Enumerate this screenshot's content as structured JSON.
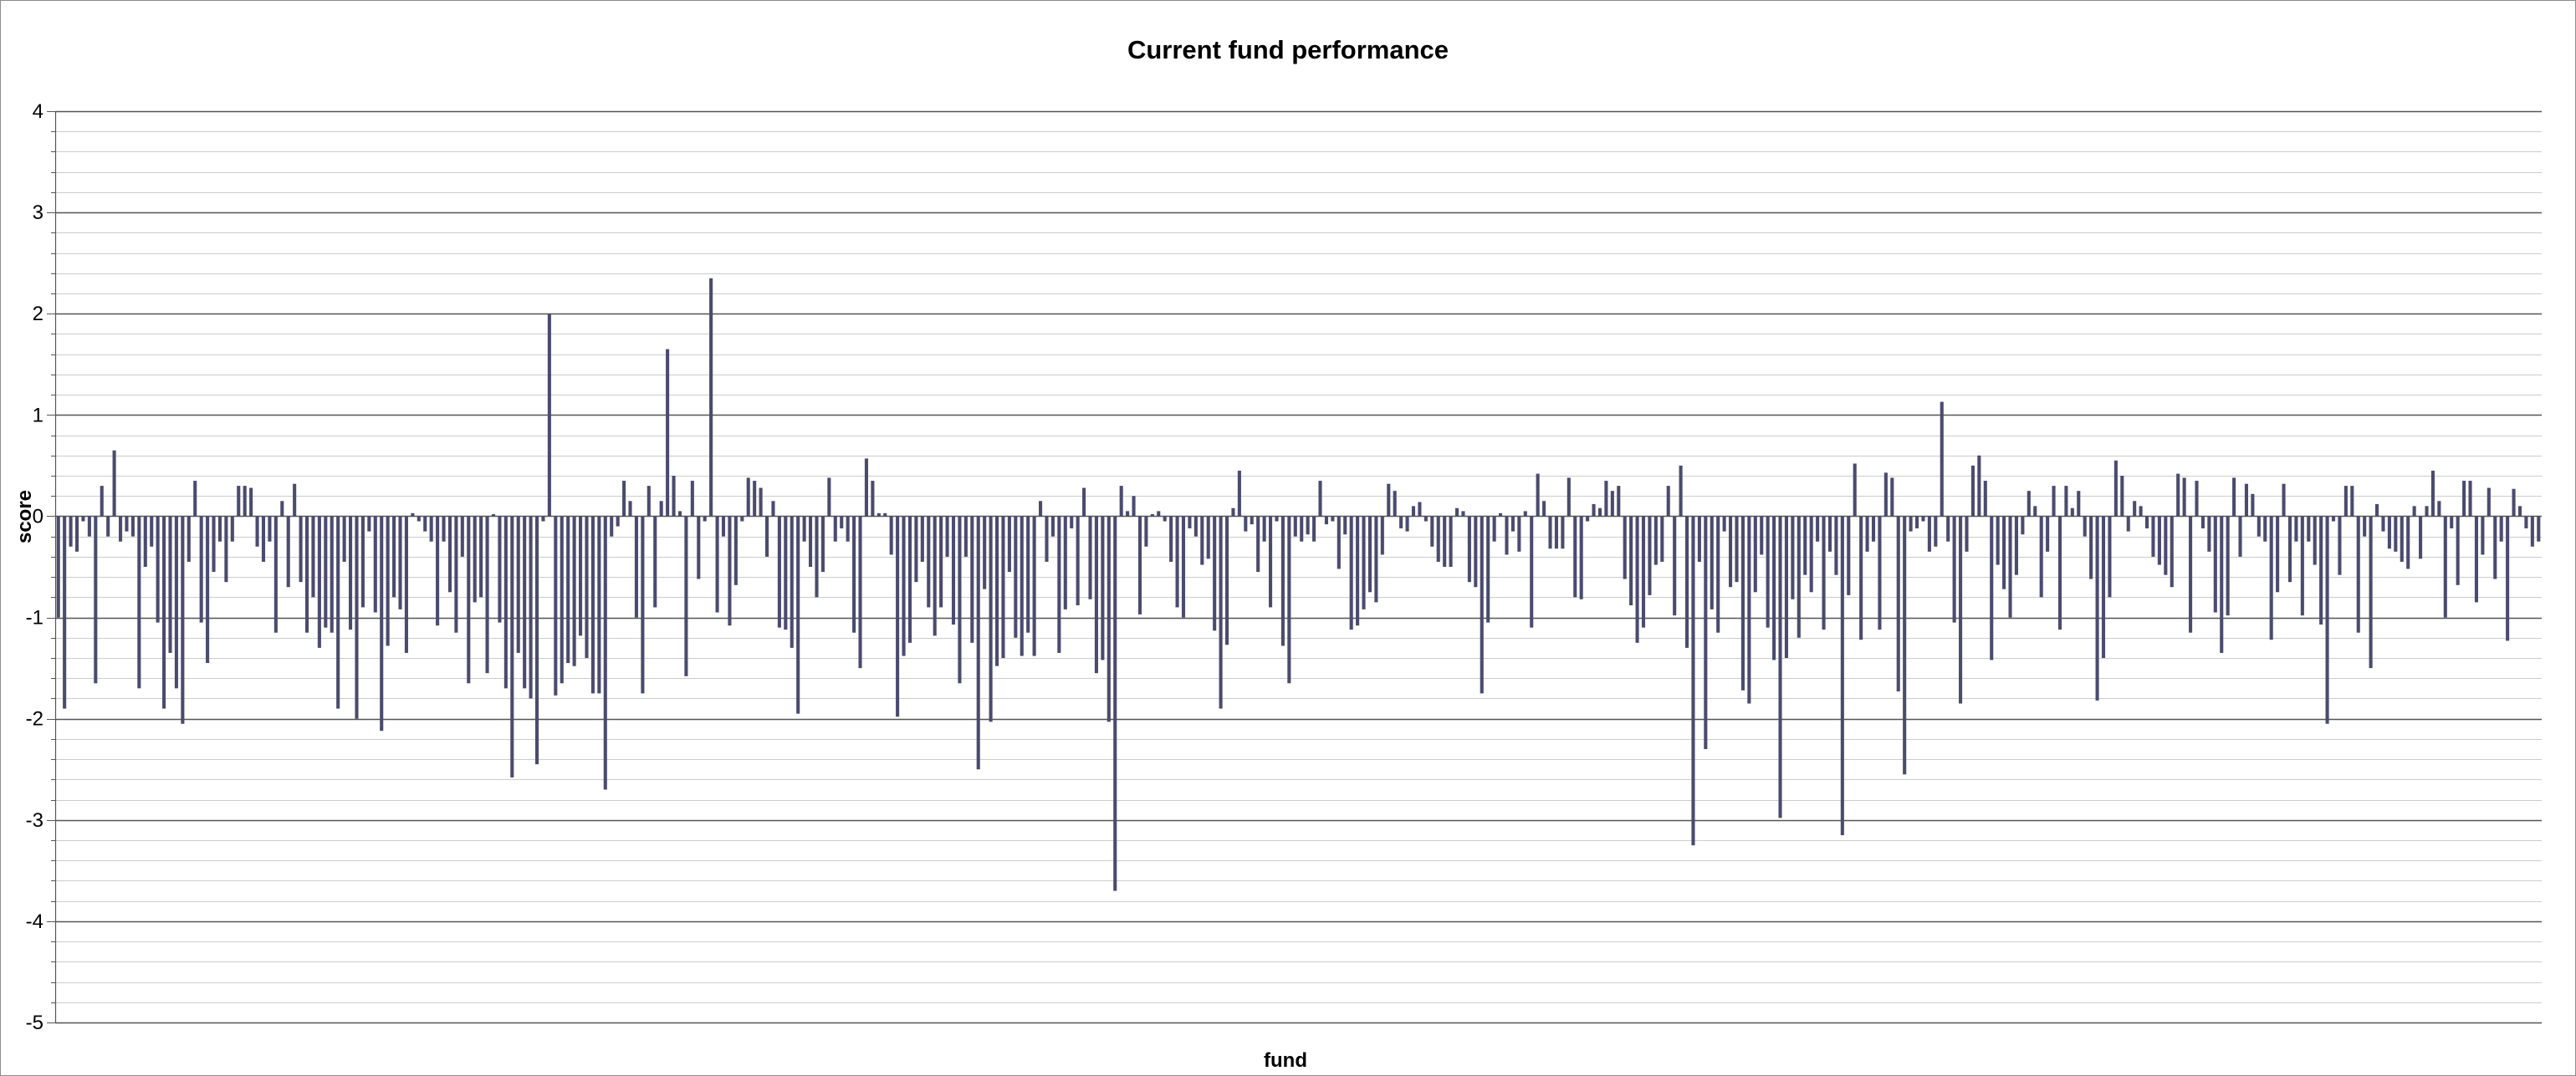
{
  "chart_data": {
    "type": "bar",
    "title": "Current fund performance",
    "xlabel": "fund",
    "ylabel": "score",
    "ylim": [
      -5,
      4
    ],
    "y_major_ticks": [
      -5,
      -4,
      -3,
      -2,
      -1,
      0,
      1,
      2,
      3,
      4
    ],
    "y_minor_step": 0.2,
    "grid": true,
    "legend": "none",
    "bar_color": "#4a4b6e",
    "gridline_color": "#cccccc",
    "major_gridline_color": "#555555",
    "values": [
      -1.0,
      -1.9,
      -0.3,
      -0.35,
      -0.05,
      -0.2,
      -1.65,
      0.3,
      -0.2,
      0.65,
      -0.25,
      -0.15,
      -0.2,
      -1.7,
      -0.5,
      -0.3,
      -1.05,
      -1.9,
      -1.35,
      -1.7,
      -2.05,
      -0.45,
      0.35,
      -1.05,
      -1.45,
      -0.55,
      -0.25,
      -0.65,
      -0.25,
      0.3,
      0.3,
      0.28,
      -0.3,
      -0.45,
      -0.25,
      -1.15,
      0.15,
      -0.7,
      0.32,
      -0.65,
      -1.15,
      -0.8,
      -1.3,
      -1.1,
      -1.15,
      -1.9,
      -0.45,
      -1.12,
      -2.0,
      -0.9,
      -0.15,
      -0.95,
      -2.12,
      -1.28,
      -0.8,
      -0.92,
      -1.35,
      0.03,
      -0.05,
      -0.15,
      -0.25,
      -1.08,
      -0.25,
      -0.75,
      -1.15,
      -0.4,
      -1.65,
      -0.85,
      -0.8,
      -1.55,
      0.02,
      -1.05,
      -1.7,
      -2.58,
      -1.35,
      -1.7,
      -1.8,
      -2.45,
      -0.05,
      2.0,
      -1.77,
      -1.65,
      -1.45,
      -1.48,
      -1.18,
      -1.4,
      -1.75,
      -1.75,
      -2.7,
      -0.2,
      -0.1,
      0.35,
      0.15,
      -1.0,
      -1.75,
      0.3,
      -0.9,
      0.15,
      1.65,
      0.4,
      0.05,
      -1.58,
      0.35,
      -0.62,
      -0.05,
      2.35,
      -0.95,
      -0.2,
      -1.08,
      -0.68,
      -0.05,
      0.38,
      0.35,
      0.28,
      -0.4,
      0.15,
      -1.1,
      -1.12,
      -1.3,
      -1.95,
      -0.25,
      -0.5,
      -0.8,
      -0.55,
      0.38,
      -0.25,
      -0.12,
      -0.25,
      -1.15,
      -1.5,
      0.57,
      0.35,
      0.03,
      0.03,
      -0.38,
      -1.98,
      -1.38,
      -1.25,
      -0.65,
      -0.45,
      -0.9,
      -1.18,
      -0.9,
      -0.4,
      -1.07,
      -1.65,
      -0.4,
      -1.25,
      -2.5,
      -0.72,
      -2.03,
      -1.48,
      -1.4,
      -0.55,
      -1.2,
      -1.38,
      -1.15,
      -1.38,
      0.15,
      -0.45,
      -0.2,
      -1.35,
      -0.92,
      -0.12,
      -0.88,
      0.28,
      -0.82,
      -1.55,
      -1.42,
      -2.03,
      -3.7,
      0.3,
      0.05,
      0.2,
      -0.97,
      -0.3,
      0.02,
      0.05,
      -0.05,
      -0.45,
      -0.9,
      -1.0,
      -0.12,
      -0.2,
      -0.48,
      -0.42,
      -1.13,
      -1.9,
      -1.27,
      0.08,
      0.45,
      -0.15,
      -0.08,
      -0.55,
      -0.25,
      -0.9,
      -0.05,
      -1.28,
      -1.65,
      -0.2,
      -0.25,
      -0.18,
      -0.25,
      0.35,
      -0.08,
      -0.05,
      -0.52,
      -0.18,
      -1.12,
      -1.08,
      -0.92,
      -0.75,
      -0.85,
      -0.38,
      0.32,
      0.25,
      -0.12,
      -0.15,
      0.1,
      0.14,
      -0.05,
      -0.3,
      -0.45,
      -0.5,
      -0.5,
      0.08,
      0.05,
      -0.65,
      -0.7,
      -1.75,
      -1.05,
      -0.25,
      0.03,
      -0.38,
      -0.15,
      -0.35,
      0.05,
      -1.1,
      0.42,
      0.15,
      -0.32,
      -0.32,
      -0.32,
      0.38,
      -0.8,
      -0.82,
      -0.05,
      0.12,
      0.08,
      0.35,
      0.25,
      0.3,
      -0.62,
      -0.88,
      -1.25,
      -1.1,
      -0.78,
      -0.48,
      -0.45,
      0.3,
      -0.98,
      0.5,
      -1.3,
      -3.25,
      -0.45,
      -2.3,
      -0.92,
      -1.15,
      -0.15,
      -0.7,
      -0.65,
      -1.72,
      -1.85,
      -0.75,
      -0.38,
      -1.1,
      -1.42,
      -2.98,
      -1.4,
      -0.82,
      -1.2,
      -0.58,
      -0.75,
      -0.25,
      -1.12,
      -0.35,
      -0.58,
      -3.15,
      -0.78,
      0.52,
      -1.22,
      -0.35,
      -0.25,
      -1.12,
      0.43,
      0.38,
      -1.73,
      -2.55,
      -0.15,
      -0.12,
      -0.05,
      -0.35,
      -0.3,
      1.13,
      -0.25,
      -1.05,
      -1.85,
      -0.35,
      0.5,
      0.6,
      0.35,
      -1.42,
      -0.48,
      -0.72,
      -1.0,
      -0.58,
      -0.18,
      0.25,
      0.1,
      -0.8,
      -0.35,
      0.3,
      -1.12,
      0.3,
      0.08,
      0.25,
      -0.2,
      -0.62,
      -1.82,
      -1.4,
      -0.8,
      0.55,
      0.4,
      -0.15,
      0.15,
      0.1,
      -0.12,
      -0.4,
      -0.48,
      -0.58,
      -0.7,
      0.42,
      0.38,
      -1.15,
      0.35,
      -0.12,
      -0.35,
      -0.95,
      -1.35,
      -0.98,
      0.38,
      -0.4,
      0.32,
      0.22,
      -0.2,
      -0.25,
      -1.22,
      -0.75,
      0.32,
      -0.65,
      -0.25,
      -0.98,
      -0.25,
      -0.48,
      -1.07,
      -2.05,
      -0.05,
      -0.58,
      0.3,
      0.3,
      -1.15,
      -0.2,
      -1.5,
      0.12,
      -0.15,
      -0.32,
      -0.35,
      -0.45,
      -0.52,
      0.1,
      -0.42,
      0.1,
      0.45,
      0.15,
      -1.0,
      -0.12,
      -0.68,
      0.35,
      0.35,
      -0.85,
      -0.38,
      0.28,
      -0.62,
      -0.25,
      -1.23,
      0.27,
      0.1,
      -0.12,
      -0.3,
      -0.25
    ]
  }
}
